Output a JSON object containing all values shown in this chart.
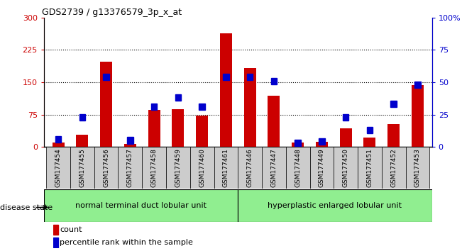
{
  "title": "GDS2739 / g13376579_3p_x_at",
  "samples": [
    "GSM177454",
    "GSM177455",
    "GSM177456",
    "GSM177457",
    "GSM177458",
    "GSM177459",
    "GSM177460",
    "GSM177461",
    "GSM177446",
    "GSM177447",
    "GSM177448",
    "GSM177449",
    "GSM177450",
    "GSM177451",
    "GSM177452",
    "GSM177453"
  ],
  "counts": [
    10,
    28,
    198,
    7,
    85,
    88,
    72,
    263,
    183,
    118,
    10,
    11,
    43,
    22,
    52,
    143
  ],
  "percentiles": [
    5,
    22,
    53,
    4,
    30,
    37,
    30,
    53,
    53,
    50,
    2,
    3,
    22,
    12,
    32,
    47
  ],
  "group1_label": "normal terminal duct lobular unit",
  "group2_label": "hyperplastic enlarged lobular unit",
  "disease_state_label": "disease state",
  "left_yticks": [
    0,
    75,
    150,
    225,
    300
  ],
  "right_yticks": [
    0,
    25,
    50,
    75,
    100
  ],
  "right_yticklabels": [
    "0",
    "25",
    "50",
    "75",
    "100%"
  ],
  "bar_color": "#cc0000",
  "percentile_color": "#0000cc",
  "group_bg_color": "#90ee90",
  "bar_width": 0.5,
  "legend_count_label": "count",
  "legend_pct_label": "percentile rank within the sample"
}
